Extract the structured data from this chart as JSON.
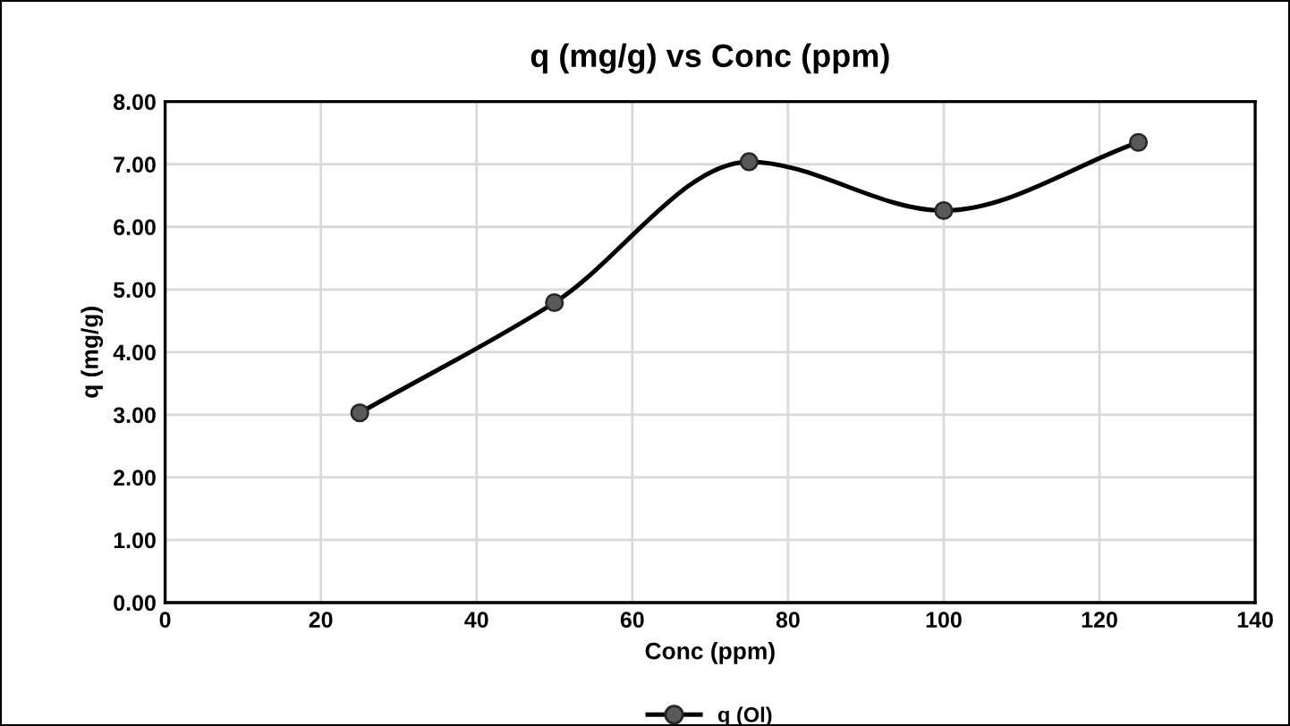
{
  "chart_data": {
    "type": "line",
    "title": "q (mg/g) vs Conc (ppm)",
    "xlabel": "Conc (ppm)",
    "ylabel": "q (mg/g)",
    "x": [
      25,
      50,
      75,
      100,
      125
    ],
    "series": [
      {
        "name": "q (Ol)",
        "color": "#595959",
        "values": [
          3.03,
          4.79,
          7.04,
          6.26,
          7.35
        ]
      }
    ],
    "xlim": [
      0,
      140
    ],
    "xticks": [
      0,
      20,
      40,
      60,
      80,
      100,
      120,
      140
    ],
    "ylim": [
      0,
      8
    ],
    "yticks": [
      {
        "value": 0,
        "label": "0.00"
      },
      {
        "value": 1,
        "label": "1.00"
      },
      {
        "value": 2,
        "label": "2.00"
      },
      {
        "value": 3,
        "label": "3.00"
      },
      {
        "value": 4,
        "label": "4.00"
      },
      {
        "value": 5,
        "label": "5.00"
      },
      {
        "value": 6,
        "label": "6.00"
      },
      {
        "value": 7,
        "label": "7.00"
      },
      {
        "value": 8,
        "label": "8.00"
      }
    ],
    "grid": true,
    "legend": "bottom",
    "marker": "circle",
    "line_style": "solid"
  }
}
